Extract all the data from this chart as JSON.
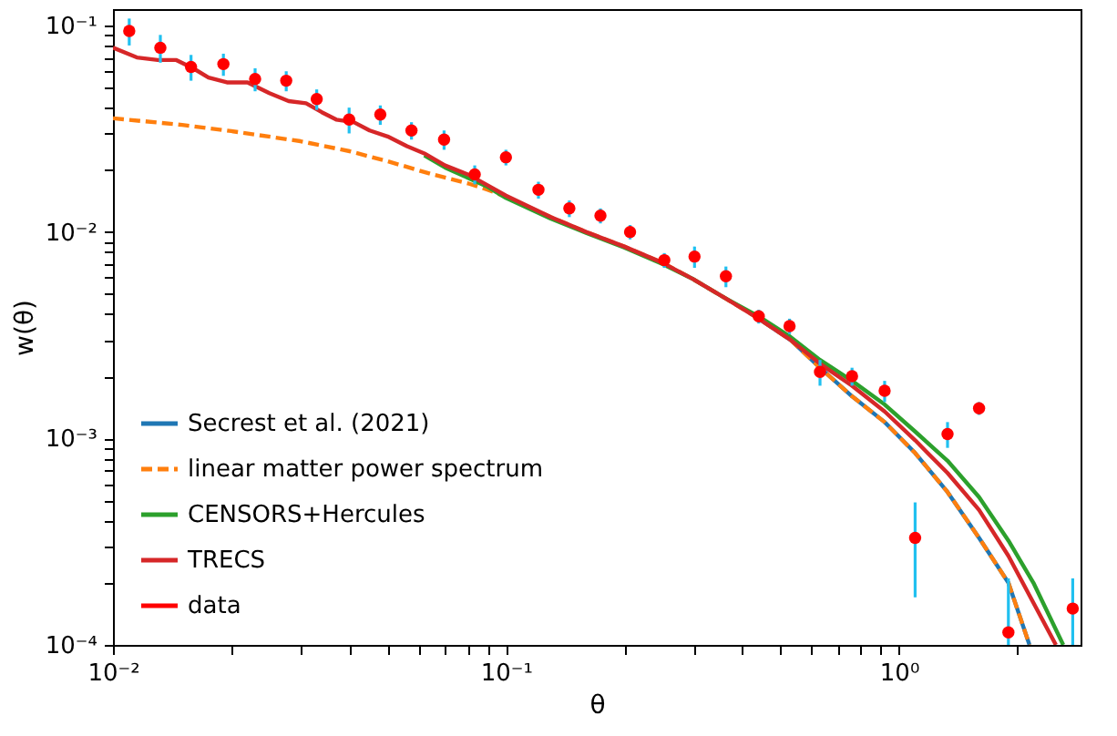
{
  "chart_data": {
    "type": "line",
    "xlabel": "θ",
    "ylabel": "w(θ)",
    "log": "xy",
    "grid": false,
    "legend": "bottom left",
    "xlim": [
      0.01,
      2.9
    ],
    "ylim": [
      0.0001,
      0.12
    ],
    "xticks": [
      {
        "value": 0.01,
        "label": "10⁻²"
      },
      {
        "value": 0.02,
        "label": null
      },
      {
        "value": 0.03,
        "label": null
      },
      {
        "value": 0.04,
        "label": null
      },
      {
        "value": 0.05,
        "label": null
      },
      {
        "value": 0.06,
        "label": null
      },
      {
        "value": 0.07,
        "label": null
      },
      {
        "value": 0.08,
        "label": null
      },
      {
        "value": 0.09,
        "label": null
      },
      {
        "value": 0.1,
        "label": "10⁻¹"
      },
      {
        "value": 0.2,
        "label": null
      },
      {
        "value": 0.3,
        "label": null
      },
      {
        "value": 0.4,
        "label": null
      },
      {
        "value": 0.5,
        "label": null
      },
      {
        "value": 0.6,
        "label": null
      },
      {
        "value": 0.7,
        "label": null
      },
      {
        "value": 0.8,
        "label": null
      },
      {
        "value": 0.9,
        "label": null
      },
      {
        "value": 1,
        "label": "10⁰"
      },
      {
        "value": 2,
        "label": null
      }
    ],
    "yticks": [
      {
        "value": 0.0001,
        "label": "10⁻⁴"
      },
      {
        "value": 0.0002,
        "label": null
      },
      {
        "value": 0.0003,
        "label": null
      },
      {
        "value": 0.0004,
        "label": null
      },
      {
        "value": 0.0005,
        "label": null
      },
      {
        "value": 0.0006,
        "label": null
      },
      {
        "value": 0.0007,
        "label": null
      },
      {
        "value": 0.0008,
        "label": null
      },
      {
        "value": 0.0009,
        "label": null
      },
      {
        "value": 0.001,
        "label": "10⁻³"
      },
      {
        "value": 0.002,
        "label": null
      },
      {
        "value": 0.003,
        "label": null
      },
      {
        "value": 0.004,
        "label": null
      },
      {
        "value": 0.005,
        "label": null
      },
      {
        "value": 0.006,
        "label": null
      },
      {
        "value": 0.007,
        "label": null
      },
      {
        "value": 0.008,
        "label": null
      },
      {
        "value": 0.009,
        "label": null
      },
      {
        "value": 0.01,
        "label": "10⁻²"
      },
      {
        "value": 0.02,
        "label": null
      },
      {
        "value": 0.03,
        "label": null
      },
      {
        "value": 0.04,
        "label": null
      },
      {
        "value": 0.05,
        "label": null
      },
      {
        "value": 0.06,
        "label": null
      },
      {
        "value": 0.07,
        "label": null
      },
      {
        "value": 0.08,
        "label": null
      },
      {
        "value": 0.09,
        "label": null
      },
      {
        "value": 0.1,
        "label": "10⁻¹"
      }
    ],
    "series": [
      {
        "name": "Secrest et al. (2021)",
        "type": "line",
        "color": "#1f77b4",
        "line_style": "solid",
        "x": [
          0.44,
          0.53,
          0.63,
          0.76,
          0.92,
          1.1,
          1.33,
          1.6,
          1.9,
          2.15
        ],
        "values": [
          0.0038,
          0.003,
          0.0022,
          0.0016,
          0.0012,
          0.00085,
          0.00055,
          0.00033,
          0.0002,
          0.0001
        ]
      },
      {
        "name": "linear matter power spectrum",
        "type": "line",
        "color": "#ff7f0e",
        "line_style": "dashed",
        "x": [
          0.01,
          0.015,
          0.02,
          0.03,
          0.04,
          0.05,
          0.065,
          0.08,
          0.09,
          0.1,
          0.13,
          0.16,
          0.2,
          0.25,
          0.3,
          0.36,
          0.44,
          0.53,
          0.63,
          0.76,
          0.92,
          1.1,
          1.33,
          1.6,
          1.9,
          2.15
        ],
        "values": [
          0.0355,
          0.033,
          0.0308,
          0.0275,
          0.0246,
          0.022,
          0.019,
          0.0172,
          0.016,
          0.0148,
          0.0118,
          0.01,
          0.0085,
          0.0071,
          0.0059,
          0.0048,
          0.0038,
          0.003,
          0.0022,
          0.0016,
          0.0012,
          0.00085,
          0.00055,
          0.00033,
          0.0002,
          0.0001
        ]
      },
      {
        "name": "CENSORS+Hercules",
        "type": "line",
        "color": "#2ca02c",
        "line_style": "solid",
        "x": [
          0.062,
          0.07,
          0.08,
          0.09,
          0.1,
          0.13,
          0.16,
          0.2,
          0.25,
          0.3,
          0.36,
          0.44,
          0.53,
          0.63,
          0.76,
          0.92,
          1.1,
          1.33,
          1.6,
          1.9,
          2.2,
          2.62
        ],
        "values": [
          0.0235,
          0.0205,
          0.0183,
          0.0165,
          0.0146,
          0.0116,
          0.0099,
          0.0084,
          0.007,
          0.0059,
          0.0048,
          0.0039,
          0.0031,
          0.0024,
          0.0019,
          0.00146,
          0.00108,
          0.00078,
          0.00052,
          0.00032,
          0.0002,
          0.0001
        ]
      },
      {
        "name": "TRECS",
        "type": "line",
        "color": "#d62728",
        "line_style": "solid",
        "x": [
          0.01,
          0.0115,
          0.013,
          0.0145,
          0.016,
          0.0175,
          0.0195,
          0.022,
          0.025,
          0.028,
          0.031,
          0.034,
          0.037,
          0.041,
          0.045,
          0.05,
          0.056,
          0.062,
          0.07,
          0.08,
          0.09,
          0.1,
          0.13,
          0.16,
          0.2,
          0.25,
          0.3,
          0.36,
          0.44,
          0.53,
          0.63,
          0.76,
          0.92,
          1.1,
          1.33,
          1.6,
          1.9,
          2.2,
          2.51
        ],
        "values": [
          0.078,
          0.07,
          0.068,
          0.068,
          0.062,
          0.056,
          0.053,
          0.053,
          0.047,
          0.043,
          0.042,
          0.038,
          0.035,
          0.034,
          0.031,
          0.029,
          0.026,
          0.024,
          0.021,
          0.019,
          0.0168,
          0.015,
          0.0118,
          0.01,
          0.0085,
          0.0071,
          0.0059,
          0.0048,
          0.0038,
          0.003,
          0.0023,
          0.0018,
          0.00135,
          0.00098,
          0.00068,
          0.00045,
          0.00027,
          0.00016,
          0.0001
        ]
      },
      {
        "name": "data",
        "type": "scatter",
        "color": "#ff0000",
        "marker": "circle",
        "x": [
          0.011,
          0.0132,
          0.0158,
          0.0191,
          0.023,
          0.0276,
          0.033,
          0.0399,
          0.0479,
          0.0575,
          0.0696,
          0.0833,
          0.1,
          0.121,
          0.145,
          0.174,
          0.207,
          0.253,
          0.302,
          0.363,
          0.44,
          0.527,
          0.63,
          0.76,
          0.92,
          1.1,
          1.33,
          1.6,
          1.9,
          2.77
        ],
        "values": [
          0.094,
          0.078,
          0.063,
          0.065,
          0.055,
          0.054,
          0.044,
          0.035,
          0.037,
          0.031,
          0.028,
          0.019,
          0.023,
          0.016,
          0.013,
          0.012,
          0.01,
          0.0073,
          0.0076,
          0.0061,
          0.0039,
          0.0035,
          0.0021,
          0.002,
          0.0017,
          0.00033,
          0.00105,
          0.0014,
          0.000115,
          0.00015
        ],
        "errors": [
          0.014,
          0.012,
          0.009,
          0.008,
          0.007,
          0.006,
          0.005,
          0.005,
          0.004,
          0.003,
          0.003,
          0.002,
          0.002,
          0.0015,
          0.0012,
          0.001,
          0.0008,
          0.0006,
          0.0009,
          0.0007,
          0.0003,
          0.0003,
          0.0003,
          0.0002,
          0.0002,
          [
            0.00017,
            0.00049
          ],
          0.00015,
          0.0001,
          [
            0.0001,
            0.00021
          ],
          [
            0.0001,
            0.00021
          ]
        ]
      }
    ]
  }
}
